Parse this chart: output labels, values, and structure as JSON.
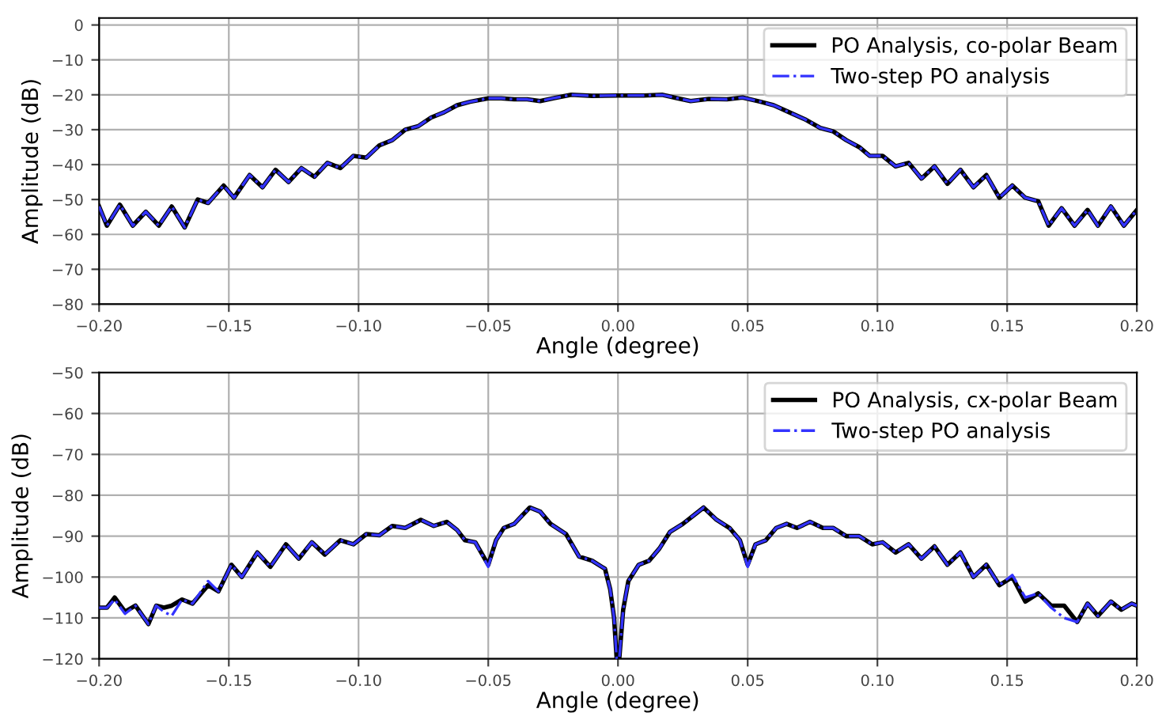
{
  "chart_data": [
    {
      "type": "line",
      "xlabel": "Angle (degree)",
      "ylabel": "Amplitude (dB)",
      "xlim": [
        -0.2,
        0.2
      ],
      "ylim": [
        -80,
        2
      ],
      "xticks": [
        {
          "value": -0.2,
          "label": "−0.20"
        },
        {
          "value": -0.15,
          "label": "−0.15"
        },
        {
          "value": -0.1,
          "label": "−0.10"
        },
        {
          "value": -0.05,
          "label": "−0.05"
        },
        {
          "value": 0,
          "label": "0.00"
        },
        {
          "value": 0.05,
          "label": "0.05"
        },
        {
          "value": 0.1,
          "label": "0.10"
        },
        {
          "value": 0.15,
          "label": "0.15"
        },
        {
          "value": 0.2,
          "label": "0.20"
        }
      ],
      "yticks": [
        {
          "value": 0,
          "label": "0"
        },
        {
          "value": -10,
          "label": "−10"
        },
        {
          "value": -20,
          "label": "−20"
        },
        {
          "value": -30,
          "label": "−30"
        },
        {
          "value": -40,
          "label": "−40"
        },
        {
          "value": -50,
          "label": "−50"
        },
        {
          "value": -60,
          "label": "−60"
        },
        {
          "value": -70,
          "label": "−70"
        },
        {
          "value": -80,
          "label": "−80"
        }
      ],
      "grid": true,
      "legend": "top right",
      "x": [
        -0.2,
        -0.197,
        -0.192,
        -0.187,
        -0.182,
        -0.177,
        -0.172,
        -0.167,
        -0.162,
        -0.158,
        -0.152,
        -0.148,
        -0.142,
        -0.137,
        -0.132,
        -0.127,
        -0.122,
        -0.117,
        -0.112,
        -0.107,
        -0.102,
        -0.097,
        -0.092,
        -0.087,
        -0.082,
        -0.077,
        -0.072,
        -0.067,
        -0.062,
        -0.057,
        -0.05,
        -0.045,
        -0.04,
        -0.035,
        -0.03,
        -0.025,
        -0.018,
        -0.01,
        0,
        0.01,
        0.017,
        0.023,
        0.028,
        0.035,
        0.042,
        0.048,
        0.055,
        0.06,
        0.066,
        0.072,
        0.078,
        0.083,
        0.088,
        0.093,
        0.097,
        0.102,
        0.107,
        0.112,
        0.117,
        0.122,
        0.127,
        0.132,
        0.137,
        0.142,
        0.147,
        0.152,
        0.157,
        0.162,
        0.166,
        0.171,
        0.176,
        0.181,
        0.185,
        0.19,
        0.195,
        0.2
      ],
      "series": [
        {
          "name": "PO Analysis, co-polar Beam",
          "color": "#000000",
          "line_style": "solid",
          "values": [
            -52,
            -57.5,
            -51.5,
            -57.5,
            -53.5,
            -57.5,
            -52,
            -58,
            -50,
            -51,
            -46,
            -49.5,
            -43,
            -46.5,
            -41.5,
            -45,
            -41,
            -43.5,
            -39.5,
            -41,
            -37.5,
            -38,
            -34.5,
            -33,
            -30,
            -29,
            -26.5,
            -25,
            -23,
            -22,
            -21,
            -21,
            -21.3,
            -21.3,
            -21.8,
            -21,
            -20,
            -20.3,
            -20.2,
            -20.2,
            -20,
            -21,
            -21.8,
            -21.2,
            -21.3,
            -20.8,
            -22,
            -23,
            -25,
            -27,
            -29.5,
            -30.5,
            -33,
            -35,
            -37.5,
            -37.5,
            -40.5,
            -39.5,
            -44,
            -40.5,
            -45.5,
            -41.5,
            -46.5,
            -43,
            -49.5,
            -46,
            -49.5,
            -50.5,
            -57.5,
            -52.5,
            -57.5,
            -53,
            -57.5,
            -52,
            -57.5,
            -53
          ]
        },
        {
          "name": "Two-step PO analysis",
          "color": "#3333ff",
          "line_style": "dashdot",
          "values": [
            -52,
            -57.5,
            -51.5,
            -57.5,
            -53.5,
            -57.5,
            -52,
            -58,
            -50,
            -51,
            -46,
            -49.5,
            -43,
            -46.5,
            -41.5,
            -45,
            -41,
            -43.5,
            -39.5,
            -41,
            -37.5,
            -38,
            -34.5,
            -33,
            -30,
            -29,
            -26.5,
            -25,
            -23,
            -22,
            -21,
            -21,
            -21.3,
            -21.3,
            -21.8,
            -21,
            -20,
            -20.3,
            -20.2,
            -20.2,
            -20,
            -21,
            -21.8,
            -21.2,
            -21.3,
            -20.8,
            -22,
            -23,
            -25,
            -27,
            -29.5,
            -30.5,
            -33,
            -35,
            -37.5,
            -37.5,
            -40.5,
            -39.5,
            -44,
            -40.5,
            -45.5,
            -41.5,
            -46.5,
            -43,
            -49.5,
            -46,
            -49.5,
            -50.5,
            -57.5,
            -52.5,
            -57.5,
            -53,
            -57.5,
            -52,
            -57.5,
            -53
          ]
        }
      ]
    },
    {
      "type": "line",
      "xlabel": "Angle (degree)",
      "ylabel": "Amplitude (dB)",
      "xlim": [
        -0.2,
        0.2
      ],
      "ylim": [
        -120,
        -50
      ],
      "xticks": [
        {
          "value": -0.2,
          "label": "−0.20"
        },
        {
          "value": -0.15,
          "label": "−0.15"
        },
        {
          "value": -0.1,
          "label": "−0.10"
        },
        {
          "value": -0.05,
          "label": "−0.05"
        },
        {
          "value": 0,
          "label": "0.00"
        },
        {
          "value": 0.05,
          "label": "0.05"
        },
        {
          "value": 0.1,
          "label": "0.10"
        },
        {
          "value": 0.15,
          "label": "0.15"
        },
        {
          "value": 0.2,
          "label": "0.20"
        }
      ],
      "yticks": [
        {
          "value": -50,
          "label": "−50"
        },
        {
          "value": -60,
          "label": "−60"
        },
        {
          "value": -70,
          "label": "−70"
        },
        {
          "value": -80,
          "label": "−80"
        },
        {
          "value": -90,
          "label": "−90"
        },
        {
          "value": -100,
          "label": "−100"
        },
        {
          "value": -110,
          "label": "−110"
        },
        {
          "value": -120,
          "label": "−120"
        }
      ],
      "grid": true,
      "legend": "top right",
      "x": [
        -0.2,
        -0.197,
        -0.194,
        -0.19,
        -0.186,
        -0.181,
        -0.178,
        -0.175,
        -0.172,
        -0.168,
        -0.164,
        -0.158,
        -0.154,
        -0.149,
        -0.145,
        -0.139,
        -0.134,
        -0.128,
        -0.123,
        -0.118,
        -0.113,
        -0.107,
        -0.102,
        -0.097,
        -0.092,
        -0.087,
        -0.082,
        -0.076,
        -0.071,
        -0.066,
        -0.062,
        -0.059,
        -0.055,
        -0.05,
        -0.047,
        -0.044,
        -0.04,
        -0.034,
        -0.03,
        -0.026,
        -0.02,
        -0.015,
        -0.01,
        -0.005,
        -0.003,
        -0.0015,
        -0.0005,
        0.0005,
        0.002,
        0.004,
        0.008,
        0.012,
        0.016,
        0.02,
        0.025,
        0.03,
        0.033,
        0.038,
        0.043,
        0.047,
        0.05,
        0.053,
        0.057,
        0.061,
        0.065,
        0.069,
        0.074,
        0.079,
        0.083,
        0.088,
        0.093,
        0.098,
        0.102,
        0.107,
        0.112,
        0.117,
        0.122,
        0.127,
        0.132,
        0.137,
        0.142,
        0.147,
        0.152,
        0.157,
        0.162,
        0.167,
        0.172,
        0.177,
        0.181,
        0.185,
        0.19,
        0.194,
        0.198,
        0.2
      ],
      "series": [
        {
          "name": "PO Analysis, cx-polar Beam",
          "color": "#000000",
          "line_style": "solid",
          "values": [
            -107.5,
            -107.5,
            -105,
            -108.5,
            -107,
            -111.5,
            -107,
            -107.5,
            -107,
            -105.5,
            -106.5,
            -102,
            -103.5,
            -97,
            -100,
            -94,
            -97.5,
            -92,
            -95.5,
            -91.5,
            -94.5,
            -91,
            -92,
            -89.5,
            -89.8,
            -87.5,
            -88,
            -86,
            -87.5,
            -86.5,
            -88.5,
            -91,
            -91.5,
            -97,
            -91,
            -88,
            -87,
            -83,
            -84,
            -87,
            -89.5,
            -95,
            -96,
            -98,
            -103,
            -110,
            -120,
            -120,
            -108,
            -101,
            -97,
            -96,
            -93,
            -89,
            -87,
            -84.5,
            -83,
            -86,
            -88,
            -91,
            -97,
            -92,
            -91,
            -88,
            -87,
            -88,
            -86.5,
            -88,
            -88,
            -90,
            -90,
            -92,
            -91.5,
            -94,
            -92,
            -95.5,
            -92.5,
            -97,
            -94,
            -100,
            -97,
            -102,
            -100,
            -106,
            -104,
            -107,
            -107,
            -111,
            -106.5,
            -109.5,
            -106,
            -108,
            -106.5,
            -107
          ]
        },
        {
          "name": "Two-step PO analysis",
          "color": "#3333ff",
          "line_style": "dashdot",
          "values": [
            -107.5,
            -107.5,
            -105.5,
            -109,
            -107,
            -111.5,
            -107,
            -108.5,
            -109.5,
            -105.5,
            -106.5,
            -101,
            -103.5,
            -97,
            -100,
            -94,
            -97.5,
            -92,
            -95.5,
            -91.5,
            -94.5,
            -91,
            -92,
            -89.5,
            -89.8,
            -87.5,
            -88,
            -86,
            -87.5,
            -86.5,
            -88.5,
            -91,
            -91.5,
            -97.5,
            -91,
            -88,
            -87,
            -83,
            -84,
            -87,
            -89.5,
            -95,
            -96,
            -98,
            -103,
            -110,
            -120,
            -120,
            -108,
            -101,
            -97,
            -96,
            -93,
            -89,
            -87,
            -84.5,
            -83,
            -86,
            -88,
            -91,
            -97.5,
            -92,
            -91,
            -88,
            -87,
            -88,
            -86.5,
            -88,
            -88,
            -90,
            -90,
            -92,
            -91.5,
            -94,
            -92,
            -95.5,
            -92.5,
            -97,
            -94,
            -100,
            -97,
            -102,
            -99.5,
            -105,
            -104,
            -107.5,
            -110,
            -111,
            -106.5,
            -109.5,
            -106,
            -108,
            -106.5,
            -107
          ]
        }
      ]
    }
  ]
}
